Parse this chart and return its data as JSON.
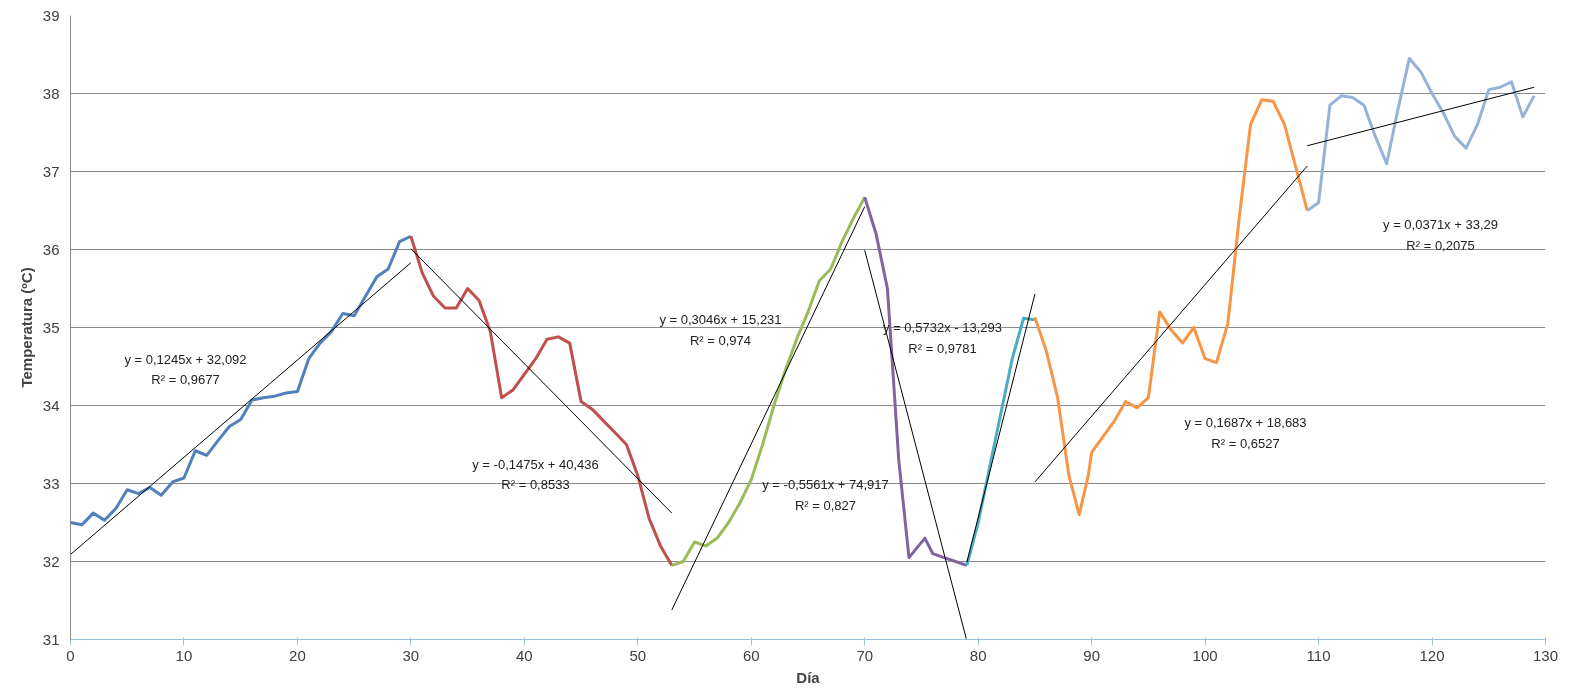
{
  "chart_data": {
    "type": "line",
    "xlabel": "Día",
    "ylabel": "Temperatura (ºC)",
    "xlim": [
      0,
      130
    ],
    "xticks": [
      0,
      10,
      20,
      30,
      40,
      50,
      60,
      70,
      80,
      90,
      100,
      110,
      120,
      130
    ],
    "ylim": [
      31,
      39
    ],
    "yticks": [
      31,
      32,
      33,
      34,
      35,
      36,
      37,
      38,
      39
    ],
    "grid": "y",
    "marker": "none",
    "series": [
      {
        "color": "#4f81bd",
        "x": [
          0,
          1,
          2,
          3,
          4,
          5,
          6,
          7,
          8,
          9,
          10,
          11,
          12,
          13,
          14,
          15,
          16,
          17,
          18,
          19,
          20,
          21,
          22,
          23,
          24,
          25,
          26,
          27,
          28,
          29,
          30
        ],
        "values": [
          32.5,
          32.47,
          32.62,
          32.53,
          32.68,
          32.92,
          32.87,
          32.95,
          32.85,
          33.02,
          33.07,
          33.42,
          33.36,
          33.55,
          33.73,
          33.82,
          34.07,
          34.1,
          34.12,
          34.16,
          34.18,
          34.6,
          34.8,
          34.95,
          35.18,
          35.15,
          35.4,
          35.65,
          35.75,
          36.1,
          36.17
        ]
      },
      {
        "color": "#c0504d",
        "x": [
          30,
          31,
          32,
          33,
          34,
          35,
          36,
          37,
          38,
          39,
          40,
          41,
          42,
          43,
          44,
          45,
          46,
          47,
          48,
          49,
          50,
          51,
          52,
          53
        ],
        "values": [
          36.17,
          35.7,
          35.4,
          35.25,
          35.25,
          35.5,
          35.35,
          34.95,
          34.1,
          34.2,
          34.4,
          34.6,
          34.85,
          34.88,
          34.8,
          34.05,
          33.95,
          33.8,
          33.65,
          33.5,
          33.1,
          32.55,
          32.2,
          31.95
        ]
      },
      {
        "color": "#9bbb59",
        "x": [
          53,
          54,
          55,
          56,
          57,
          58,
          59,
          60,
          61,
          62,
          63,
          64,
          65,
          66,
          67,
          68,
          69,
          70
        ],
        "values": [
          31.95,
          32.0,
          32.25,
          32.2,
          32.3,
          32.5,
          32.75,
          33.05,
          33.5,
          34.0,
          34.45,
          34.85,
          35.2,
          35.6,
          35.75,
          36.1,
          36.4,
          36.67
        ]
      },
      {
        "color": "#8064a2",
        "x": [
          70,
          71,
          72,
          73,
          73.9,
          75.3,
          76,
          77,
          78,
          79
        ],
        "values": [
          36.67,
          36.2,
          35.5,
          33.3,
          32.05,
          32.3,
          32.1,
          32.05,
          32.0,
          31.95
        ]
      },
      {
        "color": "#4bacc6",
        "x": [
          79,
          80,
          81,
          82,
          83,
          84,
          85
        ],
        "values": [
          31.95,
          32.5,
          33.2,
          33.9,
          34.6,
          35.12,
          35.1
        ]
      },
      {
        "color": "#f79646",
        "x": [
          85,
          86,
          87,
          88,
          88.9,
          89.7,
          90,
          91,
          92,
          93,
          94,
          95,
          96,
          97,
          98,
          99,
          100,
          101,
          102,
          103,
          104,
          105,
          106,
          107,
          108,
          109
        ],
        "values": [
          35.13,
          34.7,
          34.1,
          33.1,
          32.6,
          33.1,
          33.4,
          33.6,
          33.8,
          34.05,
          33.97,
          34.1,
          35.2,
          34.97,
          34.8,
          35.0,
          34.6,
          34.55,
          35.05,
          36.4,
          37.6,
          37.92,
          37.9,
          37.6,
          37.05,
          36.5
        ]
      },
      {
        "color": "#95b3d7",
        "x": [
          109,
          110,
          111,
          112,
          113,
          114,
          115,
          116,
          117,
          118,
          119,
          120,
          121,
          122,
          123,
          124,
          125,
          126,
          127,
          128,
          129
        ],
        "values": [
          36.5,
          36.6,
          37.85,
          37.97,
          37.95,
          37.85,
          37.45,
          37.1,
          37.8,
          38.45,
          38.28,
          38.0,
          37.75,
          37.45,
          37.3,
          37.6,
          38.05,
          38.08,
          38.15,
          37.7,
          37.97
        ]
      },
      {
        "color": "#000000",
        "x": [
          0,
          30
        ],
        "values": [
          32.09,
          35.83
        ]
      },
      {
        "color": "#000000",
        "x": [
          30,
          53
        ],
        "values": [
          36.01,
          32.62
        ]
      },
      {
        "color": "#000000",
        "x": [
          53,
          70
        ],
        "values": [
          31.38,
          36.55
        ]
      },
      {
        "color": "#000000",
        "x": [
          70,
          78.95
        ],
        "values": [
          35.99,
          31.01
        ]
      },
      {
        "color": "#000000",
        "x": [
          79,
          85
        ],
        "values": [
          31.99,
          35.43
        ]
      },
      {
        "color": "#000000",
        "x": [
          85,
          109
        ],
        "values": [
          33.02,
          37.07
        ]
      },
      {
        "color": "#000000",
        "x": [
          109,
          129
        ],
        "values": [
          37.33,
          38.08
        ]
      }
    ],
    "annotations": [
      "y = 0,1245x + 32,092",
      "R² = 0,9677",
      "y = -0,1475x + 40,436",
      "R² = 0,8533",
      "y = 0,3046x + 15,231",
      "R² = 0,974",
      "y = -0,5561x + 74,917",
      "R² = 0,827",
      "y = 0,5732x - 13,293",
      "R² = 0,9781",
      "y = 0,1687x + 18,683",
      "R² = 0,6527",
      "y = 0,0371x + 33,29",
      "R² = 0,2075"
    ]
  }
}
